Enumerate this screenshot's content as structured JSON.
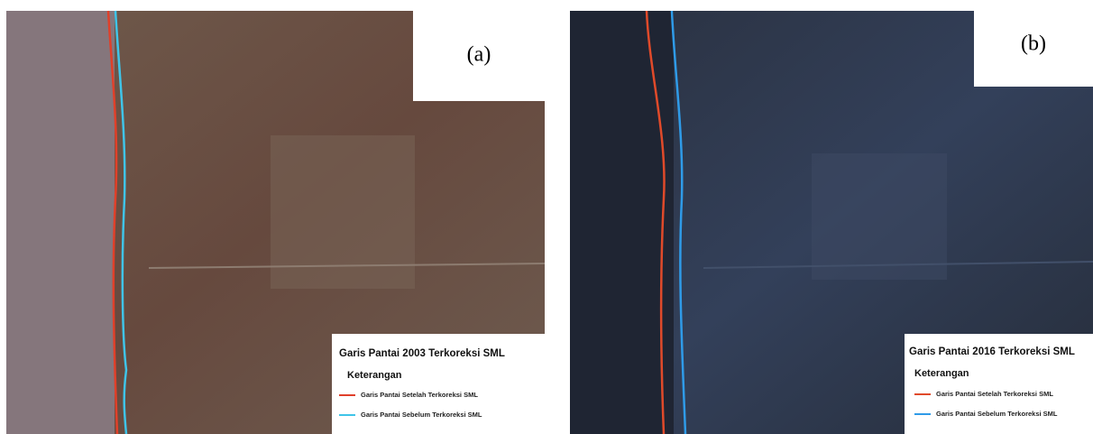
{
  "panels": [
    {
      "label": "(a)",
      "legend": {
        "title": "Garis Pantai 2003 Terkoreksi SML",
        "heading": "Keterangan",
        "items": [
          "Garis Pantai Setelah Terkoreksi SML",
          "Garis Pantai Sebelum Terkoreksi SML"
        ]
      }
    },
    {
      "label": "(b)",
      "legend": {
        "title": "Garis Pantai 2016 Terkoreksi SML",
        "heading": "Keterangan",
        "items": [
          "Garis Pantai Setelah Terkoreksi SML",
          "Garis Pantai Sebelum Terkoreksi SML"
        ]
      }
    }
  ]
}
